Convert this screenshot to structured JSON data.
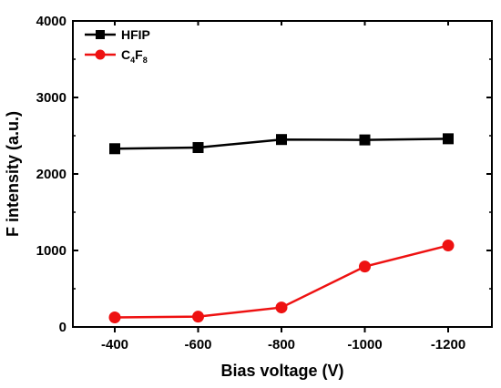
{
  "chart_data": {
    "type": "line",
    "categories": [
      "-400",
      "-600",
      "-800",
      "-1000",
      "-1200"
    ],
    "series": [
      {
        "name": "HFIP",
        "values": [
          2330,
          2345,
          2450,
          2445,
          2460
        ],
        "color": "#000000",
        "marker": "square"
      },
      {
        "name_main": "C",
        "name_sub1": "4",
        "name_mid": "F",
        "name_sub2": "8",
        "values": [
          125,
          135,
          255,
          790,
          1065
        ],
        "color": "#ee1111",
        "marker": "circle"
      }
    ],
    "xlabel": "Bias voltage (V)",
    "ylabel": "F intensity (a.u.)",
    "ylim": [
      0,
      4000
    ],
    "yticks": [
      "0",
      "1000",
      "2000",
      "3000",
      "4000"
    ],
    "grid": false,
    "legend_position": "top-left"
  }
}
